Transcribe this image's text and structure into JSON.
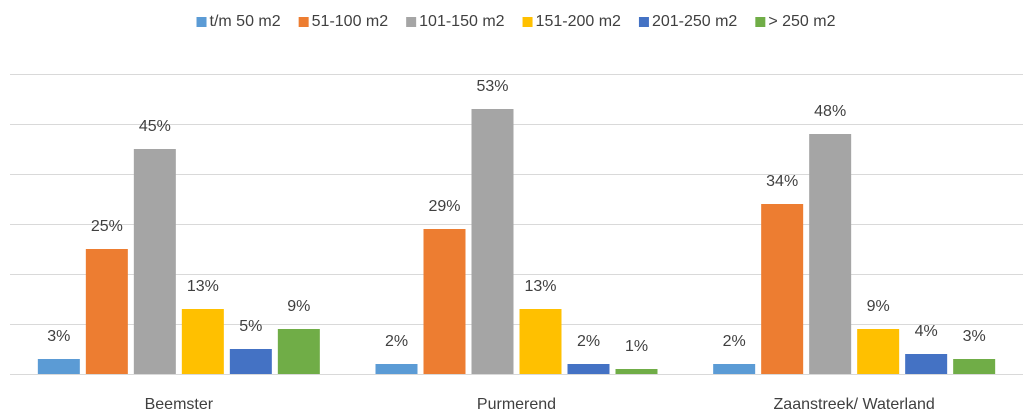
{
  "chart_data": {
    "type": "bar",
    "categories": [
      "Beemster",
      "Purmerend",
      "Zaanstreek/ Waterland"
    ],
    "series": [
      {
        "name": "t/m 50 m2",
        "color": "#5b9bd5",
        "values": [
          3,
          2,
          2
        ],
        "value_labels": [
          "3%",
          "2%",
          "2%"
        ]
      },
      {
        "name": "51-100 m2",
        "color": "#ed7d31",
        "values": [
          25,
          29,
          34
        ],
        "value_labels": [
          "25%",
          "29%",
          "34%"
        ]
      },
      {
        "name": "101-150 m2",
        "color": "#a5a5a5",
        "values": [
          45,
          53,
          48
        ],
        "value_labels": [
          "45%",
          "53%",
          "48%"
        ]
      },
      {
        "name": "151-200 m2",
        "color": "#ffc000",
        "values": [
          13,
          13,
          9
        ],
        "value_labels": [
          "13%",
          "13%",
          "9%"
        ]
      },
      {
        "name": "201-250 m2",
        "color": "#4472c4",
        "values": [
          5,
          2,
          4
        ],
        "value_labels": [
          "5%",
          "2%",
          "4%"
        ]
      },
      {
        "name": "> 250 m2",
        "color": "#70ad47",
        "values": [
          9,
          1,
          3
        ],
        "value_labels": [
          "9%",
          "1%",
          "3%"
        ]
      }
    ],
    "ylim": [
      0,
      60
    ],
    "yticks": [
      0,
      10,
      20,
      30,
      40,
      50,
      60
    ],
    "grid": true,
    "legend": "top"
  }
}
